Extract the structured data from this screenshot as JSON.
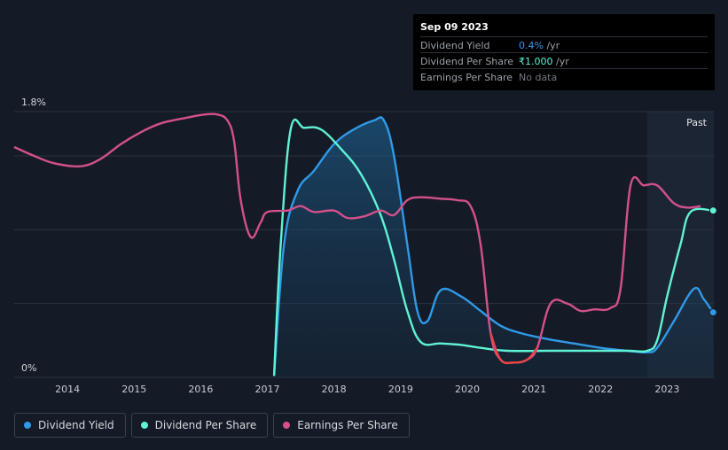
{
  "tooltip": {
    "date": "Sep 09 2023",
    "rows": [
      {
        "label": "Dividend Yield",
        "value": "0.4%",
        "unit": " /yr",
        "color": "#2e9ae8"
      },
      {
        "label": "Dividend Per Share",
        "value": "₹1.000",
        "unit": " /yr",
        "color": "#5ff2d5"
      },
      {
        "label": "Earnings Per Share",
        "value": "No data",
        "unit": "",
        "color": "#6f757e"
      }
    ]
  },
  "past_label": "Past",
  "colors": {
    "dividend_yield": "#2e9ae8",
    "dividend_per_share": "#5ff2d5",
    "earnings_per_share": "#d4508c",
    "earnings_negative": "#e84545",
    "background": "#151b26"
  },
  "legend": [
    {
      "label": "Dividend Yield",
      "color": "#2e9ae8"
    },
    {
      "label": "Dividend Per Share",
      "color": "#5ff2d5"
    },
    {
      "label": "Earnings Per Share",
      "color": "#d4508c"
    }
  ],
  "chart_data": {
    "type": "line",
    "y_tick_labels": [
      "1.8%",
      "0%"
    ],
    "ylim": [
      0,
      1.8
    ],
    "xlim": [
      2013.2,
      2023.7
    ],
    "x_ticks": [
      2014,
      2015,
      2016,
      2017,
      2018,
      2019,
      2020,
      2021,
      2022,
      2023
    ],
    "past_region_start": 2022.7,
    "grid": true,
    "legend_position": "bottom-left",
    "series": [
      {
        "name": "Dividend Yield",
        "key": "dividend_yield",
        "points": [
          [
            2017.1,
            0.01
          ],
          [
            2017.25,
            0.9
          ],
          [
            2017.45,
            1.26
          ],
          [
            2017.7,
            1.4
          ],
          [
            2018.0,
            1.58
          ],
          [
            2018.3,
            1.68
          ],
          [
            2018.6,
            1.74
          ],
          [
            2018.75,
            1.74
          ],
          [
            2018.9,
            1.5
          ],
          [
            2019.1,
            0.9
          ],
          [
            2019.25,
            0.45
          ],
          [
            2019.4,
            0.38
          ],
          [
            2019.6,
            0.59
          ],
          [
            2019.9,
            0.55
          ],
          [
            2020.2,
            0.45
          ],
          [
            2020.5,
            0.35
          ],
          [
            2020.8,
            0.3
          ],
          [
            2021.2,
            0.26
          ],
          [
            2021.6,
            0.23
          ],
          [
            2022.0,
            0.2
          ],
          [
            2022.4,
            0.18
          ],
          [
            2022.7,
            0.17
          ],
          [
            2022.85,
            0.2
          ],
          [
            2023.1,
            0.38
          ],
          [
            2023.4,
            0.6
          ],
          [
            2023.55,
            0.53
          ],
          [
            2023.69,
            0.44
          ]
        ]
      },
      {
        "name": "Dividend Per Share",
        "key": "dividend_per_share",
        "points": [
          [
            2017.1,
            0.01
          ],
          [
            2017.2,
            0.9
          ],
          [
            2017.35,
            1.68
          ],
          [
            2017.55,
            1.69
          ],
          [
            2017.8,
            1.68
          ],
          [
            2018.1,
            1.55
          ],
          [
            2018.4,
            1.38
          ],
          [
            2018.7,
            1.1
          ],
          [
            2018.9,
            0.8
          ],
          [
            2019.1,
            0.45
          ],
          [
            2019.3,
            0.24
          ],
          [
            2019.6,
            0.23
          ],
          [
            2019.9,
            0.22
          ],
          [
            2020.2,
            0.2
          ],
          [
            2020.6,
            0.18
          ],
          [
            2021.2,
            0.18
          ],
          [
            2021.8,
            0.18
          ],
          [
            2022.4,
            0.18
          ],
          [
            2022.7,
            0.18
          ],
          [
            2022.85,
            0.25
          ],
          [
            2023.0,
            0.55
          ],
          [
            2023.2,
            0.9
          ],
          [
            2023.35,
            1.12
          ],
          [
            2023.69,
            1.13
          ]
        ]
      },
      {
        "name": "Earnings Per Share",
        "key": "earnings_per_share",
        "points": [
          [
            2013.2,
            1.56
          ],
          [
            2013.5,
            1.5
          ],
          [
            2013.8,
            1.45
          ],
          [
            2014.2,
            1.43
          ],
          [
            2014.5,
            1.48
          ],
          [
            2014.8,
            1.58
          ],
          [
            2015.1,
            1.66
          ],
          [
            2015.4,
            1.72
          ],
          [
            2015.8,
            1.76
          ],
          [
            2016.05,
            1.78
          ],
          [
            2016.25,
            1.78
          ],
          [
            2016.4,
            1.74
          ],
          [
            2016.5,
            1.6
          ],
          [
            2016.6,
            1.2
          ],
          [
            2016.75,
            0.95
          ],
          [
            2016.9,
            1.05
          ],
          [
            2017.0,
            1.12
          ],
          [
            2017.3,
            1.13
          ],
          [
            2017.5,
            1.16
          ],
          [
            2017.7,
            1.12
          ],
          [
            2018.0,
            1.13
          ],
          [
            2018.2,
            1.08
          ],
          [
            2018.45,
            1.09
          ],
          [
            2018.7,
            1.13
          ],
          [
            2018.9,
            1.1
          ],
          [
            2019.1,
            1.2
          ],
          [
            2019.3,
            1.22
          ],
          [
            2019.6,
            1.21
          ],
          [
            2019.85,
            1.2
          ],
          [
            2020.05,
            1.16
          ],
          [
            2020.2,
            0.9
          ],
          [
            2020.35,
            0.3
          ],
          [
            2020.5,
            0.12
          ],
          [
            2020.7,
            0.1
          ],
          [
            2020.9,
            0.12
          ],
          [
            2021.05,
            0.2
          ],
          [
            2021.25,
            0.5
          ],
          [
            2021.5,
            0.5
          ],
          [
            2021.7,
            0.45
          ],
          [
            2021.9,
            0.46
          ],
          [
            2022.15,
            0.47
          ],
          [
            2022.3,
            0.6
          ],
          [
            2022.45,
            1.3
          ],
          [
            2022.65,
            1.3
          ],
          [
            2022.85,
            1.3
          ],
          [
            2023.1,
            1.18
          ],
          [
            2023.3,
            1.15
          ],
          [
            2023.5,
            1.16
          ]
        ],
        "negative_segment": [
          2020.25,
          2021.1
        ]
      }
    ]
  }
}
